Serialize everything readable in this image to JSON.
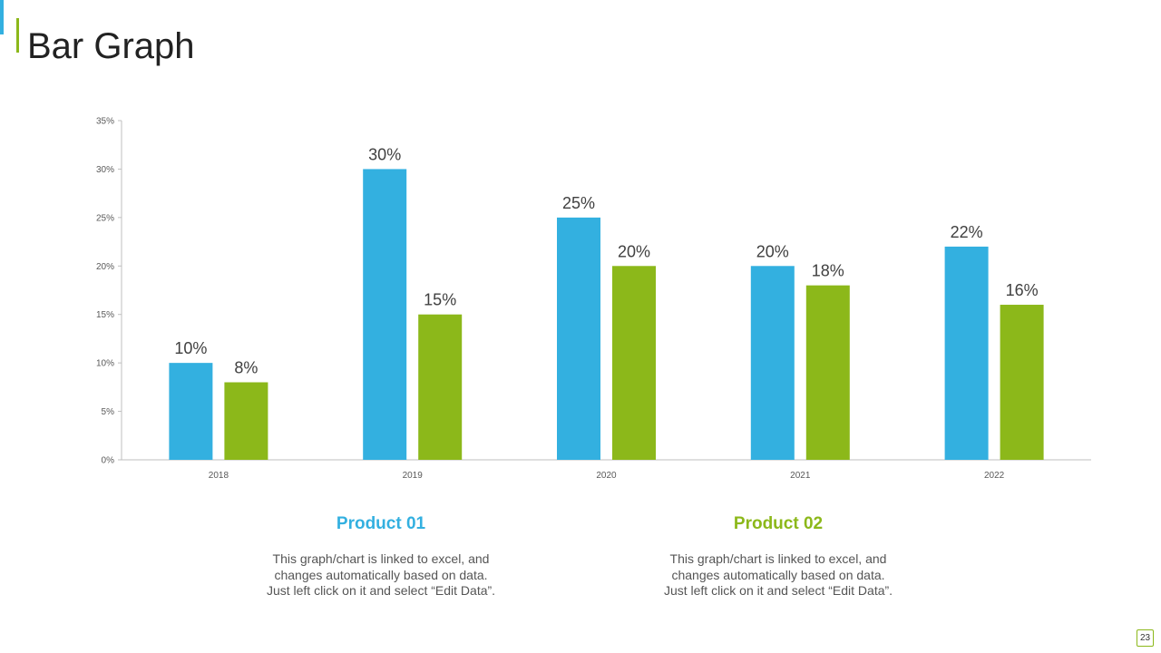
{
  "page": {
    "title": "Bar Graph",
    "page_number": "23"
  },
  "colors": {
    "product_01": "#33b0e0",
    "product_02": "#8cb81a",
    "axis": "#bfbfbf",
    "tick_text": "#595959",
    "data_label": "#404040"
  },
  "chart_data": {
    "type": "bar",
    "title": "",
    "xlabel": "",
    "ylabel": "",
    "categories": [
      "2018",
      "2019",
      "2020",
      "2021",
      "2022"
    ],
    "series": [
      {
        "name": "Product 01",
        "values": [
          10,
          30,
          25,
          20,
          22
        ],
        "labels": [
          "10%",
          "30%",
          "25%",
          "20%",
          "22%"
        ]
      },
      {
        "name": "Product 02",
        "values": [
          8,
          15,
          20,
          18,
          16
        ],
        "labels": [
          "8%",
          "15%",
          "20%",
          "18%",
          "16%"
        ]
      }
    ],
    "ylim": [
      0,
      35
    ],
    "yticks": [
      "0%",
      "5%",
      "10%",
      "15%",
      "20%",
      "25%",
      "30%",
      "35%"
    ],
    "grid": false,
    "legend": "below"
  },
  "products": [
    {
      "name": "Product 01",
      "lines": [
        "This graph/chart is linked to excel, and",
        "changes automatically based on data.",
        "Just left click on it and select “Edit Data”."
      ]
    },
    {
      "name": "Product 02",
      "lines": [
        "This graph/chart is linked to excel, and",
        "changes automatically based on data.",
        "Just left click on it and select “Edit Data”."
      ]
    }
  ]
}
